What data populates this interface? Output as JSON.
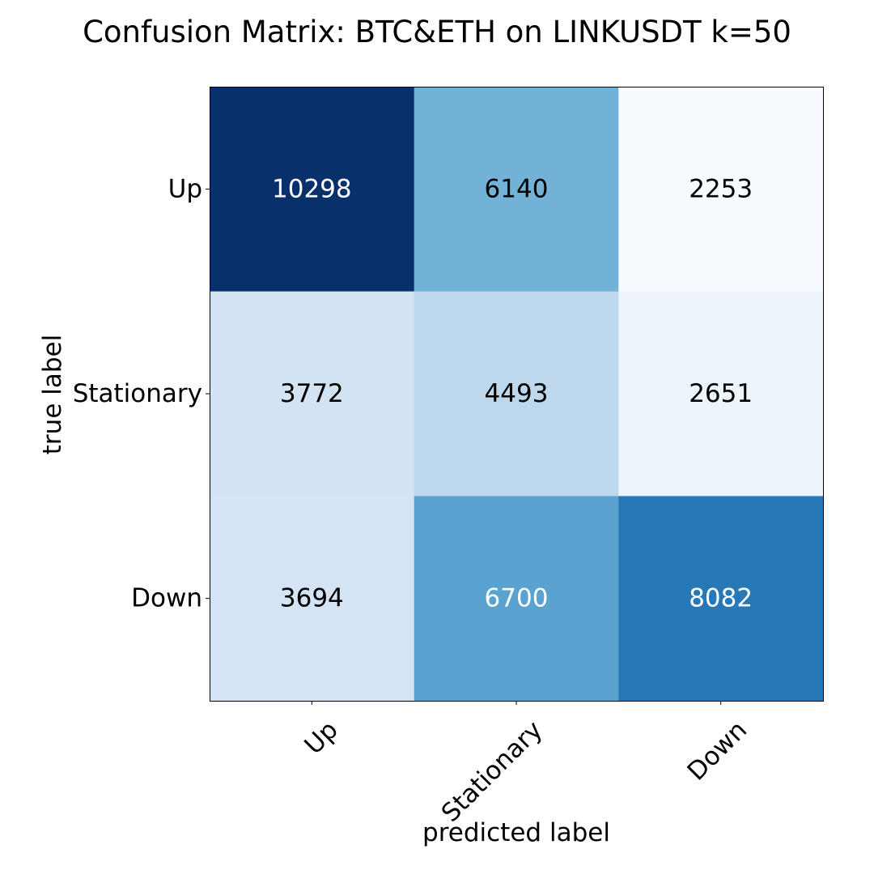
{
  "chart_data": {
    "type": "heatmap",
    "title": "Confusion Matrix: BTC&ETH on LINKUSDT k=50",
    "xlabel": "predicted label",
    "ylabel": "true label",
    "x_categories": [
      "Up",
      "Stationary",
      "Down"
    ],
    "y_categories": [
      "Up",
      "Stationary",
      "Down"
    ],
    "values": [
      [
        10298,
        6140,
        2253
      ],
      [
        3772,
        4493,
        2651
      ],
      [
        3694,
        6700,
        8082
      ]
    ],
    "colormap": "Blues",
    "text_color_threshold": 6276,
    "colors": {
      "light_text": "#ffffff",
      "dark_text": "#000000",
      "frame": "#000000"
    },
    "grid": false,
    "legend": "none"
  }
}
